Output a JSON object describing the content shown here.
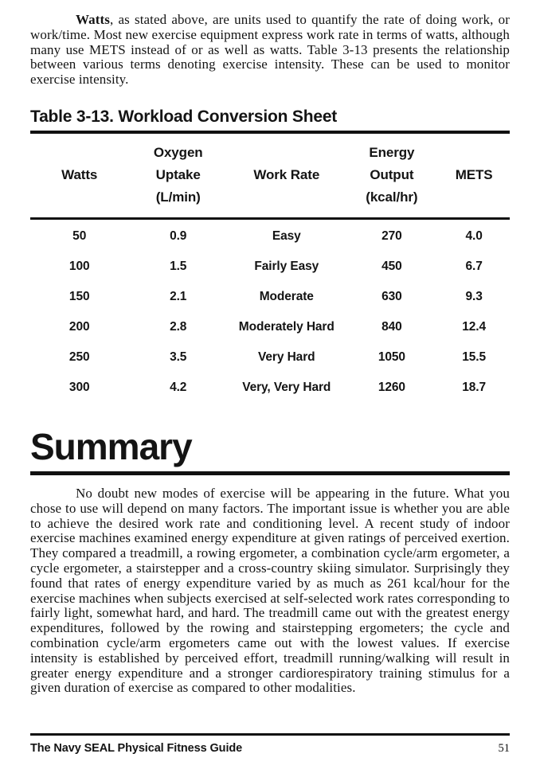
{
  "intro": {
    "lead": "Watts",
    "rest": ", as stated above, are units used to quantify the rate of doing work, or work/time. Most new exercise equipment express work rate in terms of watts, although many use METS instead of or as well as watts. Table 3-13 presents the relationship between various terms denoting exercise intensity. These can be used to monitor exercise intensity."
  },
  "table": {
    "title": "Table 3-13. Workload Conversion Sheet",
    "headers": [
      "Watts",
      "Oxygen\nUptake\n(L/min)",
      "Work Rate",
      "Energy\nOutput\n(kcal/hr)",
      "METS"
    ],
    "rows": [
      [
        "50",
        "0.9",
        "Easy",
        "270",
        "4.0"
      ],
      [
        "100",
        "1.5",
        "Fairly Easy",
        "450",
        "6.7"
      ],
      [
        "150",
        "2.1",
        "Moderate",
        "630",
        "9.3"
      ],
      [
        "200",
        "2.8",
        "Moderately Hard",
        "840",
        "12.4"
      ],
      [
        "250",
        "3.5",
        "Very Hard",
        "1050",
        "15.5"
      ],
      [
        "300",
        "4.2",
        "Very, Very Hard",
        "1260",
        "18.7"
      ]
    ]
  },
  "summary": {
    "heading": "Summary",
    "paragraph": "No doubt new modes of exercise will be appearing in the future. What you chose to use will depend on many factors. The important issue is whether you are able to achieve the desired work rate and conditioning level. A recent study of indoor exercise machines examined energy expenditure at given ratings of perceived exertion. They compared a treadmill, a rowing ergometer, a combination cycle/arm ergometer, a cycle ergometer, a stairstepper and a cross-country skiing simulator. Surprisingly they found that rates of energy expenditure varied by as much as 261 kcal/hour for the exercise machines when subjects exercised at self-selected work rates corresponding to fairly light, somewhat hard, and hard. The treadmill came out with the greatest energy expenditures, followed by the rowing and stairstepping ergometers; the cycle and combination cycle/arm ergometers came out with the lowest values. If exercise intensity is established by perceived effort, treadmill running/walking will result in greater energy expenditure and a stronger cardiorespiratory training stimulus for a given duration of exercise as compared to other modalities."
  },
  "footer": {
    "book_title": "The Navy SEAL Physical Fitness Guide",
    "page_number": "51"
  }
}
